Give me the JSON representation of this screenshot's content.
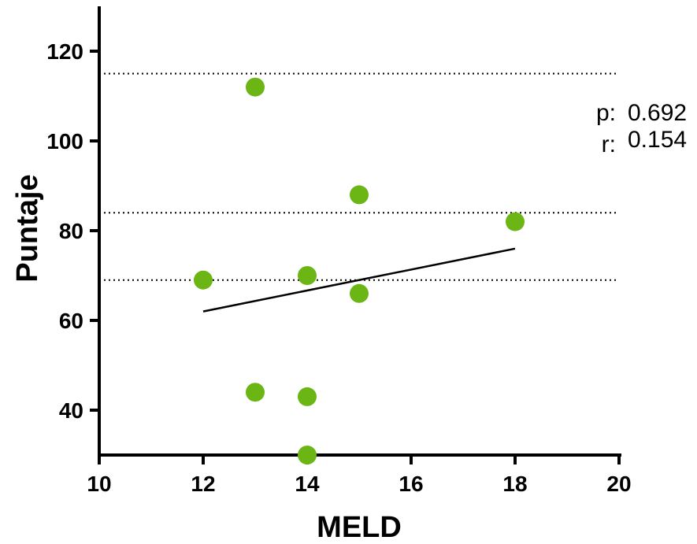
{
  "chart_data": {
    "type": "scatter",
    "xlabel": "MELD",
    "ylabel": "Puntaje",
    "xlim": [
      10,
      20
    ],
    "ylim": [
      30,
      130
    ],
    "xticks": [
      10,
      12,
      14,
      16,
      18,
      20
    ],
    "yticks": [
      40,
      60,
      80,
      100,
      120
    ],
    "points": [
      {
        "x": 12,
        "y": 69
      },
      {
        "x": 13,
        "y": 112
      },
      {
        "x": 13,
        "y": 44
      },
      {
        "x": 14,
        "y": 70
      },
      {
        "x": 14,
        "y": 43
      },
      {
        "x": 14,
        "y": 30
      },
      {
        "x": 15,
        "y": 88
      },
      {
        "x": 15,
        "y": 66
      },
      {
        "x": 18,
        "y": 82
      }
    ],
    "trend_line": {
      "x": [
        12,
        18
      ],
      "y": [
        62,
        76
      ]
    },
    "reference_lines": [
      115,
      84,
      69
    ],
    "point_color": "#6bb515",
    "stats": {
      "p_label": "p:",
      "p_value": "0.692",
      "r_label": "r:",
      "r_value": "0.154"
    }
  }
}
